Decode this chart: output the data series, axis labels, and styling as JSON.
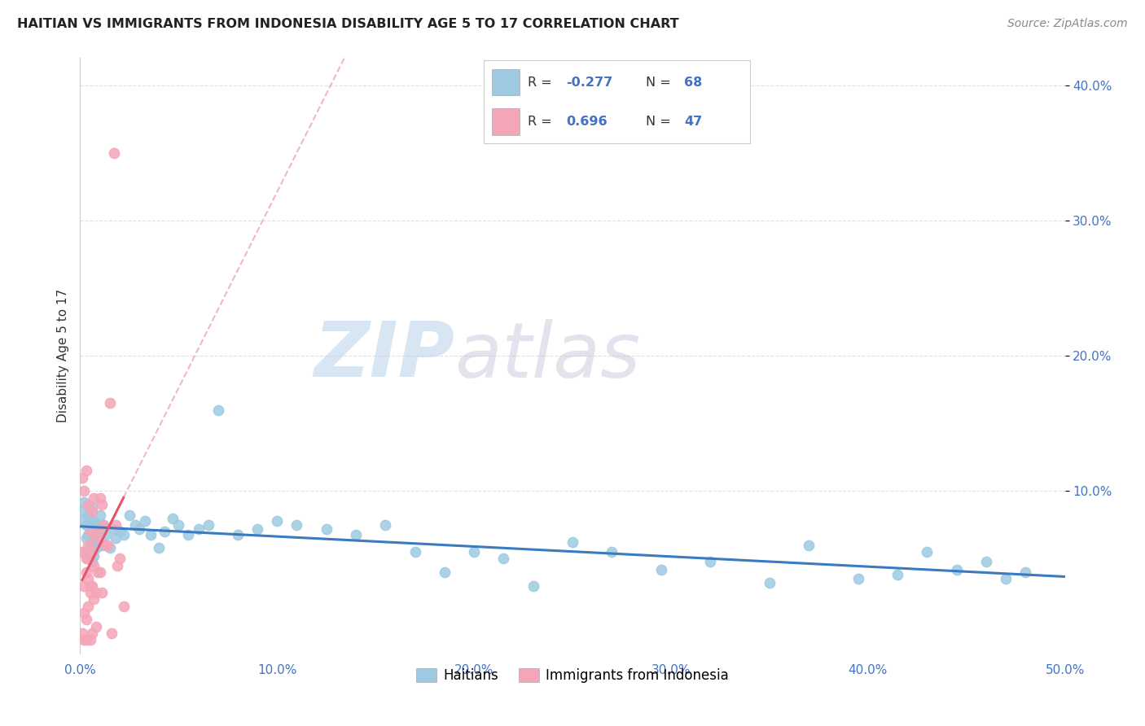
{
  "title": "HAITIAN VS IMMIGRANTS FROM INDONESIA DISABILITY AGE 5 TO 17 CORRELATION CHART",
  "source": "Source: ZipAtlas.com",
  "ylabel": "Disability Age 5 to 17",
  "xlim": [
    0.0,
    0.5
  ],
  "ylim": [
    -0.02,
    0.42
  ],
  "xticks": [
    0.0,
    0.1,
    0.2,
    0.3,
    0.4,
    0.5
  ],
  "yticks": [
    0.1,
    0.2,
    0.3,
    0.4
  ],
  "ytick_labels": [
    "10.0%",
    "20.0%",
    "30.0%",
    "40.0%"
  ],
  "xtick_labels": [
    "0.0%",
    "10.0%",
    "20.0%",
    "30.0%",
    "40.0%",
    "50.0%"
  ],
  "watermark1": "ZIP",
  "watermark2": "atlas",
  "legend_label1": "Haitians",
  "legend_label2": "Immigrants from Indonesia",
  "R1": -0.277,
  "N1": 68,
  "R2": 0.696,
  "N2": 47,
  "color1": "#9ecae1",
  "color2": "#f4a6b8",
  "trendline1_color": "#3a7abf",
  "trendline2_color": "#e8536a",
  "trendline2_ext_color": "#f0b8c4",
  "scatter1_x": [
    0.001,
    0.002,
    0.002,
    0.003,
    0.003,
    0.003,
    0.004,
    0.004,
    0.005,
    0.005,
    0.005,
    0.006,
    0.006,
    0.006,
    0.007,
    0.007,
    0.007,
    0.008,
    0.008,
    0.009,
    0.01,
    0.01,
    0.011,
    0.012,
    0.013,
    0.015,
    0.017,
    0.018,
    0.02,
    0.022,
    0.025,
    0.028,
    0.03,
    0.033,
    0.036,
    0.04,
    0.043,
    0.047,
    0.05,
    0.055,
    0.06,
    0.065,
    0.07,
    0.08,
    0.09,
    0.1,
    0.11,
    0.125,
    0.14,
    0.155,
    0.17,
    0.185,
    0.2,
    0.215,
    0.23,
    0.25,
    0.27,
    0.295,
    0.32,
    0.35,
    0.37,
    0.395,
    0.415,
    0.43,
    0.445,
    0.46,
    0.47,
    0.48
  ],
  "scatter1_y": [
    0.085,
    0.078,
    0.092,
    0.065,
    0.075,
    0.055,
    0.082,
    0.068,
    0.08,
    0.07,
    0.06,
    0.088,
    0.072,
    0.048,
    0.078,
    0.065,
    0.052,
    0.075,
    0.058,
    0.062,
    0.082,
    0.07,
    0.06,
    0.075,
    0.068,
    0.058,
    0.072,
    0.065,
    0.07,
    0.068,
    0.082,
    0.075,
    0.072,
    0.078,
    0.068,
    0.058,
    0.07,
    0.08,
    0.075,
    0.068,
    0.072,
    0.075,
    0.16,
    0.068,
    0.072,
    0.078,
    0.075,
    0.072,
    0.068,
    0.075,
    0.055,
    0.04,
    0.055,
    0.05,
    0.03,
    0.062,
    0.055,
    0.042,
    0.048,
    0.032,
    0.06,
    0.035,
    0.038,
    0.055,
    0.042,
    0.048,
    0.035,
    0.04
  ],
  "scatter2_x": [
    0.001,
    0.001,
    0.001,
    0.002,
    0.002,
    0.002,
    0.002,
    0.003,
    0.003,
    0.003,
    0.003,
    0.003,
    0.004,
    0.004,
    0.004,
    0.004,
    0.004,
    0.005,
    0.005,
    0.005,
    0.005,
    0.006,
    0.006,
    0.006,
    0.006,
    0.007,
    0.007,
    0.007,
    0.008,
    0.008,
    0.008,
    0.009,
    0.009,
    0.01,
    0.01,
    0.011,
    0.011,
    0.012,
    0.013,
    0.014,
    0.015,
    0.016,
    0.017,
    0.018,
    0.019,
    0.02,
    0.022
  ],
  "scatter2_y": [
    0.11,
    0.055,
    -0.005,
    0.1,
    0.03,
    0.01,
    -0.01,
    0.115,
    0.04,
    0.005,
    0.05,
    -0.01,
    0.035,
    0.06,
    0.09,
    0.015,
    0.05,
    0.07,
    0.03,
    -0.01,
    0.025,
    0.055,
    0.085,
    0.03,
    -0.005,
    0.045,
    0.095,
    0.02,
    0.065,
    0.025,
    0.0,
    0.07,
    0.04,
    0.04,
    0.095,
    0.09,
    0.025,
    0.075,
    0.06,
    0.06,
    0.165,
    -0.005,
    0.35,
    0.075,
    0.045,
    0.05,
    0.015
  ],
  "background_color": "#ffffff",
  "grid_color": "#e0e0e0"
}
